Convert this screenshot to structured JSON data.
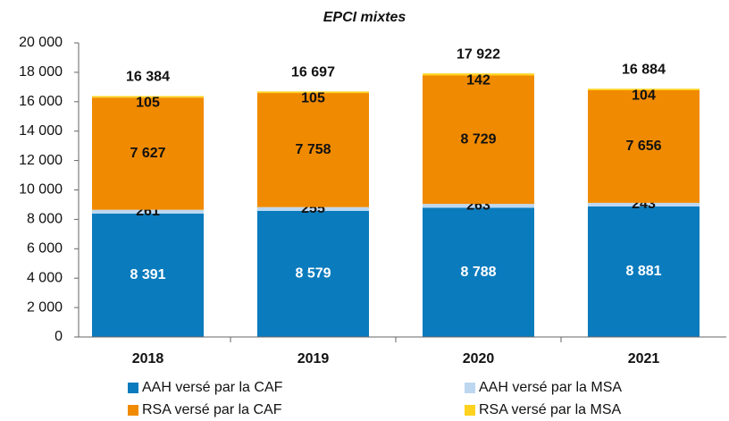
{
  "chart_data": {
    "type": "stacked_bar",
    "title": "EPCI mixtes",
    "categories": [
      "2018",
      "2019",
      "2020",
      "2021"
    ],
    "series": [
      {
        "name": "AAH versé par la CAF",
        "color": "#0a7bbd",
        "values": [
          8391,
          8579,
          8788,
          8881
        ],
        "value_labels": [
          "8 391",
          "8 579",
          "8 788",
          "8 881"
        ]
      },
      {
        "name": "AAH versé par la MSA",
        "color": "#bdd7f1",
        "values": [
          261,
          255,
          263,
          243
        ]
      },
      {
        "name": "RSA versé par la CAF",
        "color": "#f08a00",
        "values": [
          7627,
          7758,
          8729,
          7656
        ],
        "value_labels": [
          "7 627",
          "7 758",
          "8 729",
          "7 656"
        ]
      },
      {
        "name": "RSA versé par la MSA",
        "color": "#ffd21f",
        "values": [
          105,
          105,
          142,
          104
        ]
      }
    ],
    "totals": [
      16384,
      16697,
      17922,
      16884
    ],
    "total_labels": [
      "16 384",
      "16 697",
      "17 922",
      "16 884"
    ],
    "ylim": [
      0,
      20000
    ],
    "yticks": [
      0,
      {
        "value": 2000,
        "label": "2 000"
      },
      {
        "value": 4000,
        "label": "4 000"
      },
      {
        "value": 6000,
        "label": "6 000"
      },
      {
        "value": 8000,
        "label": "8 000"
      },
      {
        "value": 10000,
        "label": "10 000"
      },
      {
        "value": 12000,
        "label": "12 000"
      },
      {
        "value": 14000,
        "label": "14 000"
      },
      {
        "value": 16000,
        "label": "16 000"
      },
      {
        "value": 18000,
        "label": "18 000"
      },
      {
        "value": 20000,
        "label": "20 000"
      }
    ],
    "legend": "bottom"
  }
}
